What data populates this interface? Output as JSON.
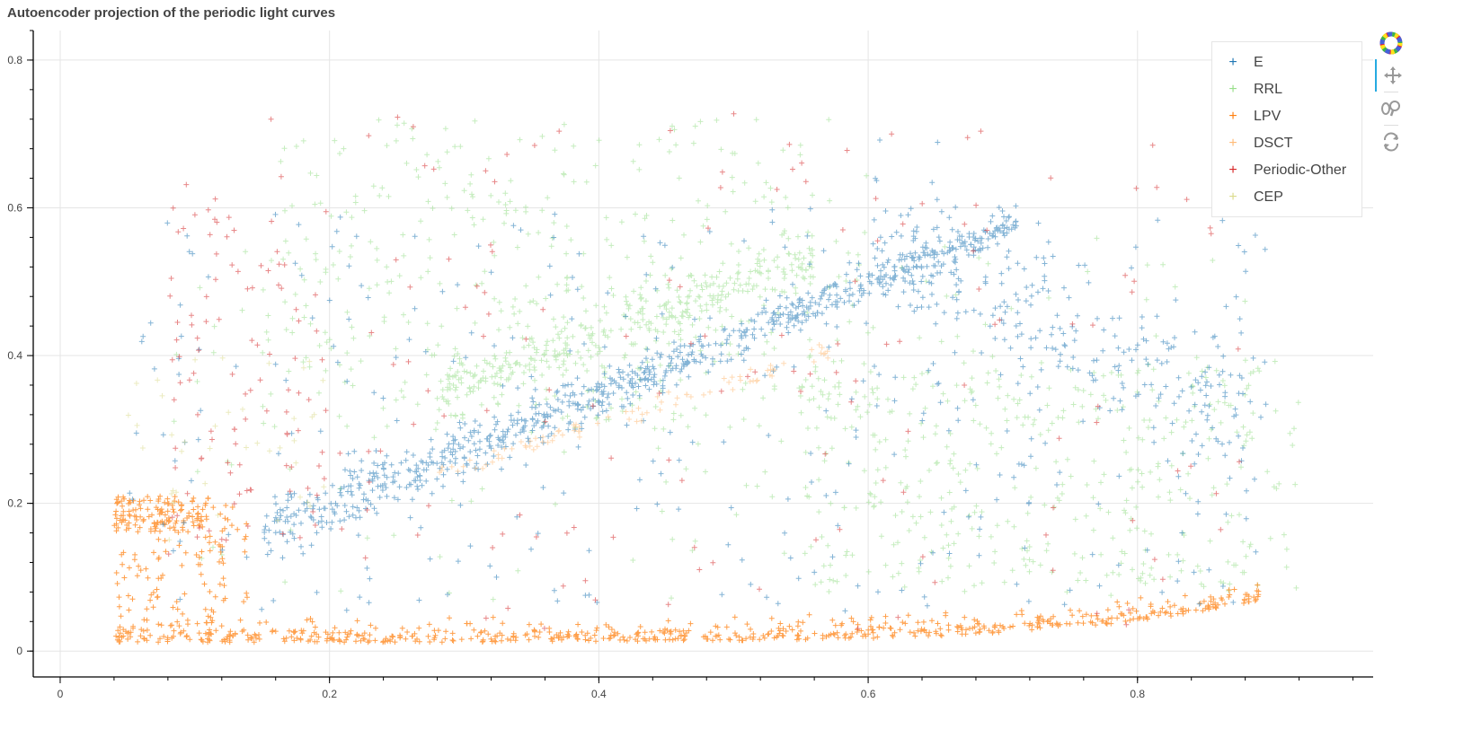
{
  "chart_data": {
    "type": "scatter",
    "title": "Autoencoder projection of the periodic light curves",
    "xlabel": "",
    "ylabel": "",
    "xlim": [
      -0.02,
      0.975
    ],
    "ylim": [
      -0.035,
      0.84
    ],
    "x_ticks": [
      0,
      0.2,
      0.4,
      0.6,
      0.8
    ],
    "y_ticks": [
      0,
      0.2,
      0.4,
      0.6,
      0.8
    ],
    "x_tick_labels": [
      "0",
      "0.2",
      "0.4",
      "0.6",
      "0.8"
    ],
    "y_tick_labels": [
      "0",
      "0.2",
      "0.4",
      "0.6",
      "0.8"
    ],
    "grid": true,
    "marker": "cross",
    "legend_position": "top-right",
    "series": [
      {
        "name": "E",
        "color": "#1f77b4",
        "approx_points": 22000
      },
      {
        "name": "RRL",
        "color": "#98df8a",
        "approx_points": 20000
      },
      {
        "name": "LPV",
        "color": "#ff7f0e",
        "approx_points": 12000
      },
      {
        "name": "DSCT",
        "color": "#ffbb78",
        "approx_points": 600
      },
      {
        "name": "Periodic-Other",
        "color": "#d62728",
        "approx_points": 2500
      },
      {
        "name": "CEP",
        "color": "#dbdb8d",
        "approx_points": 300
      }
    ]
  },
  "toolbar": {
    "tools": [
      {
        "name": "bokeh-logo",
        "icon": "bokeh-logo-icon"
      },
      {
        "name": "pan",
        "icon": "pan-icon",
        "active": true
      },
      {
        "name": "wheel-zoom",
        "icon": "wheel-zoom-icon"
      },
      {
        "name": "reset",
        "icon": "reset-icon"
      }
    ]
  }
}
